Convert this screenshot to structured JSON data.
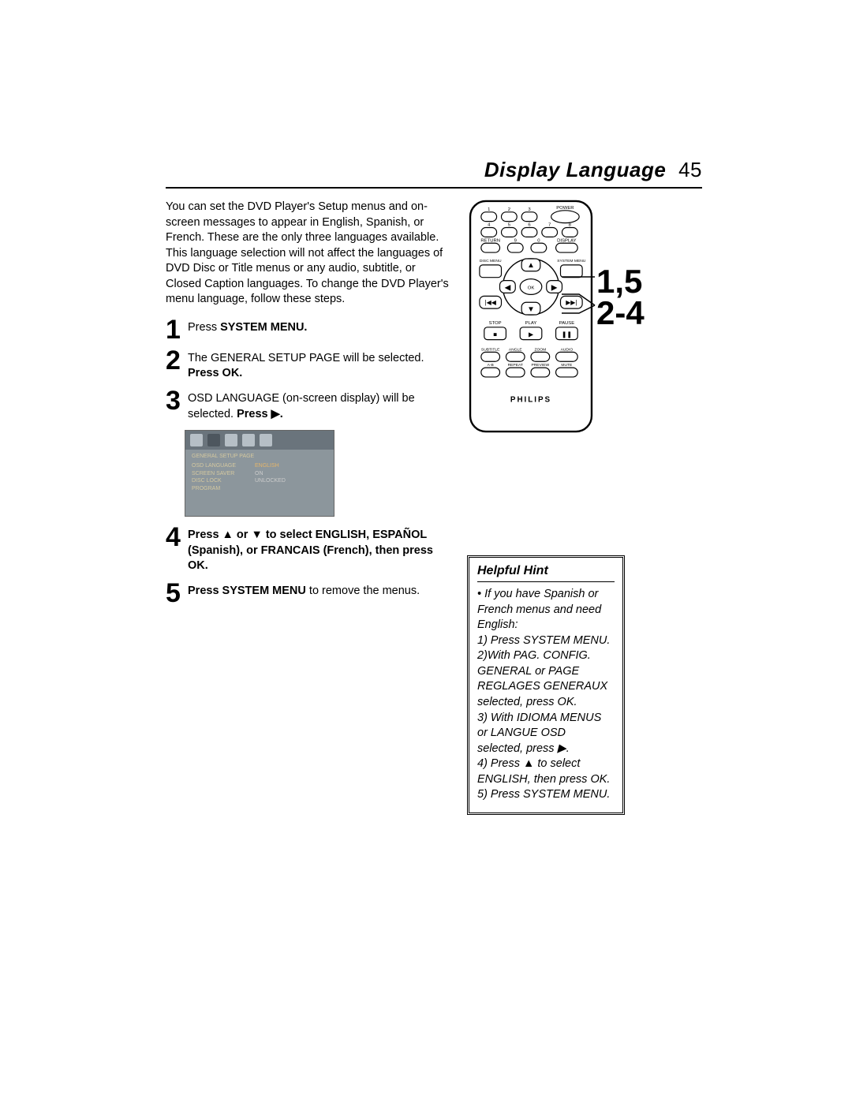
{
  "page": {
    "title": "Display Language",
    "number": "45"
  },
  "intro": "You can set the DVD Player's Setup menus and on-screen messages to appear in English, Spanish, or French. These are the only three languages available. This language selection will not affect the languages of DVD Disc or Title menus or any audio, subtitle, or Closed Caption languages. To change the DVD Player's menu language, follow these steps.",
  "steps": [
    {
      "n": "1",
      "pre": "Press ",
      "bold": "SYSTEM MENU.",
      "post": ""
    },
    {
      "n": "2",
      "pre": "The GENERAL SETUP PAGE will be selected. ",
      "bold": "Press OK.",
      "post": ""
    },
    {
      "n": "3",
      "pre": "OSD LANGUAGE (on-screen display) will be selected. ",
      "bold": "Press ▶.",
      "post": ""
    },
    {
      "n": "4",
      "bold_full": "Press ▲ or ▼ to select ENGLISH, ESPAÑOL (Spanish), or FRANCAIS (French), then press OK."
    },
    {
      "n": "5",
      "bold": "Press SYSTEM MENU",
      "post": " to remove the menus."
    }
  ],
  "screenshot": {
    "header": "GENERAL SETUP PAGE",
    "rows": [
      {
        "l": "OSD LANGUAGE",
        "r": "ENGLISH"
      },
      {
        "l": "SCREEN SAVER",
        "r": "ON"
      },
      {
        "l": "DISC LOCK",
        "r": "UNLOCKED"
      },
      {
        "l": "PROGRAM",
        "r": ""
      }
    ]
  },
  "callouts": {
    "top": "1,5",
    "bottom": "2-4"
  },
  "remote": {
    "brand": "PHILIPS",
    "row1": [
      "1",
      "2",
      "3",
      "POWER"
    ],
    "row2": [
      "4",
      "5",
      "6",
      "7",
      "8"
    ],
    "row3": [
      "RETURN",
      "9",
      "0",
      "DISPLAY"
    ],
    "row4l": "DISC MENU",
    "row4r": "SYSTEM MENU",
    "nav": {
      "up": "▲",
      "down": "▼",
      "left": "◀",
      "right": "▶",
      "ok": "OK",
      "prev": "|◀◀",
      "next": "▶▶|"
    },
    "row5": [
      "STOP",
      "PLAY",
      "PAUSE"
    ],
    "row5sym": [
      "■",
      "▶",
      "❚❚"
    ],
    "row6": [
      "SUBTITLE",
      "ANGLE",
      "ZOOM",
      "AUDIO"
    ],
    "row7": [
      "A-B",
      "REPEAT",
      "PREVIEW",
      "MUTE"
    ]
  },
  "hint": {
    "title": "Helpful Hint",
    "body": "• If you have Spanish or French menus and need English:\n1) Press SYSTEM MENU.\n2)With PAG. CONFIG. GENERAL or PAGE REGLAGES GENERAUX selected, press OK.\n3) With IDIOMA MENUS or LANGUE OSD selected, press ▶.\n4) Press ▲ to select ENGLISH, then press OK.\n5) Press SYSTEM MENU."
  },
  "colors": {
    "text": "#000000",
    "bg": "#ffffff",
    "screenshot_bg": "#8c969c",
    "screenshot_bar": "#6a747c",
    "screenshot_highlight": "#e5b56a"
  }
}
